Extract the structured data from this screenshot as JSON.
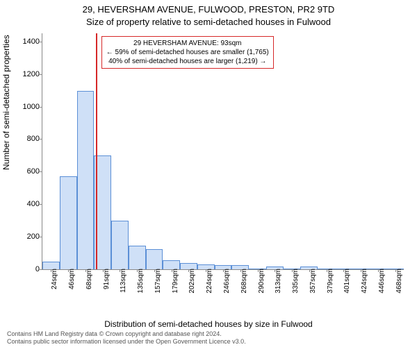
{
  "chart": {
    "title_line1": "29, HEVERSHAM AVENUE, FULWOOD, PRESTON, PR2 9TD",
    "title_line2": "Size of property relative to semi-detached houses in Fulwood",
    "ylabel": "Number of semi-detached properties",
    "xlabel": "Distribution of semi-detached houses by size in Fulwood",
    "ylim": [
      0,
      1450
    ],
    "yticks": [
      0,
      200,
      400,
      600,
      800,
      1000,
      1200,
      1400
    ],
    "xticks": [
      "24sqm",
      "46sqm",
      "68sqm",
      "91sqm",
      "113sqm",
      "135sqm",
      "157sqm",
      "179sqm",
      "202sqm",
      "224sqm",
      "246sqm",
      "268sqm",
      "290sqm",
      "313sqm",
      "335sqm",
      "357sqm",
      "379sqm",
      "401sqm",
      "424sqm",
      "446sqm",
      "468sqm"
    ],
    "values": [
      45,
      570,
      1095,
      700,
      300,
      145,
      125,
      55,
      40,
      30,
      25,
      25,
      0,
      15,
      0,
      15,
      0,
      0,
      0,
      0,
      0
    ],
    "bar_fill": "#cfe0f7",
    "bar_stroke": "#5b8fd6",
    "bar_width_ratio": 1.0,
    "vline_x_index": 3.1,
    "vline_color": "#d62728",
    "annotation": {
      "line1": "29 HEVERSHAM AVENUE: 93sqm",
      "line2": "← 59% of semi-detached houses are smaller (1,765)",
      "line3": "40% of semi-detached houses are larger (1,219) →",
      "border_color": "#d62728"
    },
    "plot_bg": "#ffffff",
    "axis_color": "#888888",
    "tick_fontsize": 11,
    "label_fontsize": 12,
    "title_fontsize": 13
  },
  "footer": {
    "line1": "Contains HM Land Registry data © Crown copyright and database right 2024.",
    "line2": "Contains public sector information licensed under the Open Government Licence v3.0."
  }
}
